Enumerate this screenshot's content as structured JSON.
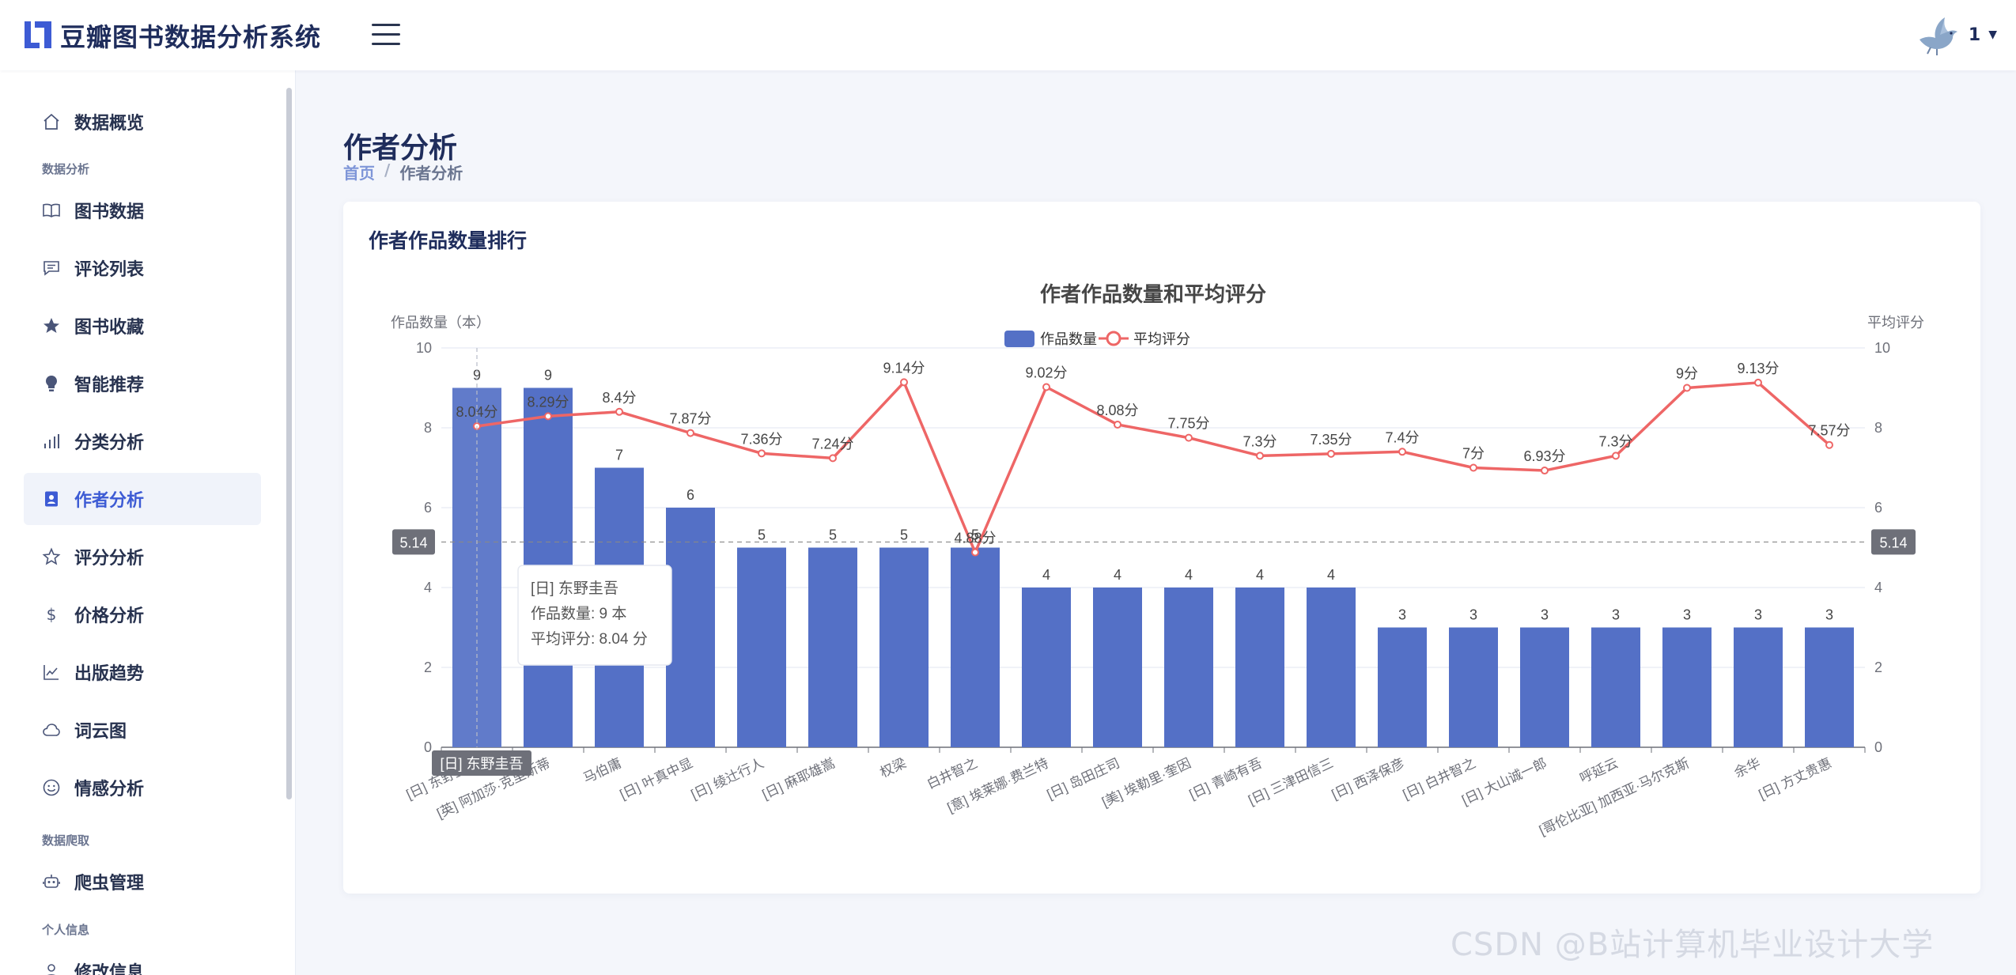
{
  "app": {
    "title": "豆瓣图书数据分析系统"
  },
  "user": {
    "name": "1",
    "avatar_icon": "bird-avatar-icon"
  },
  "sidebar": {
    "items": [
      {
        "key": "overview",
        "label": "数据概览",
        "icon": "home-icon"
      },
      {
        "key": "books",
        "label": "图书数据",
        "icon": "book-icon"
      },
      {
        "key": "comments",
        "label": "评论列表",
        "icon": "message-icon"
      },
      {
        "key": "favorites",
        "label": "图书收藏",
        "icon": "star-filled-icon"
      },
      {
        "key": "recommend",
        "label": "智能推荐",
        "icon": "bulb-icon"
      },
      {
        "key": "category",
        "label": "分类分析",
        "icon": "bar-chart-icon"
      },
      {
        "key": "author",
        "label": "作者分析",
        "icon": "contact-icon"
      },
      {
        "key": "rating",
        "label": "评分分析",
        "icon": "star-outline-icon"
      },
      {
        "key": "price",
        "label": "价格分析",
        "icon": "dollar-icon"
      },
      {
        "key": "trend",
        "label": "出版趋势",
        "icon": "line-chart-icon"
      },
      {
        "key": "wordcloud",
        "label": "词云图",
        "icon": "cloud-icon"
      },
      {
        "key": "sentiment",
        "label": "情感分析",
        "icon": "smile-icon"
      },
      {
        "key": "crawler",
        "label": "爬虫管理",
        "icon": "robot-icon"
      },
      {
        "key": "profile",
        "label": "修改信息",
        "icon": "user-icon"
      }
    ],
    "sections": [
      "数据分析",
      "数据爬取",
      "个人信息"
    ],
    "active": "author"
  },
  "page": {
    "title": "作者分析",
    "breadcrumb": {
      "home": "首页",
      "separator": "/",
      "current": "作者分析"
    }
  },
  "card": {
    "title": "作者作品数量排行"
  },
  "tooltip": {
    "title": "[日] 东野圭吾",
    "line1": "作品数量: 9 本",
    "line2": "平均评分: 8.04 分"
  },
  "axis_pointer_label": "[日] 东野圭吾",
  "average_marker": "5.14",
  "watermark": "CSDN @B站计算机毕业设计大学",
  "colors": {
    "bar": "#5470c6",
    "line": "#ee6666",
    "accent": "#3d5bd4"
  },
  "chart_data": {
    "type": "bar",
    "title": "作者作品数量和平均评分",
    "ylabel": "作品数量（本）",
    "y2label": "平均评分",
    "ylim": [
      0,
      10
    ],
    "y2lim": [
      0,
      10
    ],
    "yticks": [
      0,
      2,
      4,
      6,
      8,
      10
    ],
    "legend_position": "top-center",
    "grid": true,
    "average_line": 5.14,
    "categories": [
      "[日] 东野圭吾",
      "[英] 阿加莎·克里斯蒂",
      "马伯庸",
      "[日] 叶真中显",
      "[日] 绫辻行人",
      "[日] 麻耶雄嵩",
      "权梁",
      "白井智之",
      "[意] 埃莱娜·费兰特",
      "[日] 岛田庄司",
      "[美] 埃勒里·奎因",
      "[日] 青崎有吾",
      "[日] 三津田信三",
      "[日] 西泽保彦",
      "[日] 白井智之",
      "[日] 大山诚一郎",
      "呼延云",
      "[哥伦比亚] 加西亚·马尔克斯",
      "余华",
      "[日] 方丈贵惠"
    ],
    "series": [
      {
        "name": "作品数量",
        "type": "bar",
        "values": [
          9,
          9,
          7,
          6,
          5,
          5,
          5,
          5,
          4,
          4,
          4,
          4,
          4,
          3,
          3,
          3,
          3,
          3,
          3,
          3
        ],
        "labels": [
          "9",
          "9",
          "7",
          "6",
          "5",
          "5",
          "5",
          "5",
          "4",
          "4",
          "4",
          "4",
          "4",
          "3",
          "3",
          "3",
          "3",
          "3",
          "3",
          "3"
        ]
      },
      {
        "name": "平均评分",
        "type": "line",
        "values": [
          8.04,
          8.29,
          8.4,
          7.87,
          7.36,
          7.24,
          9.14,
          4.88,
          9.02,
          8.08,
          7.75,
          7.3,
          7.35,
          7.4,
          7,
          6.93,
          7.3,
          9,
          9.13,
          7.57
        ],
        "labels": [
          "8.04分",
          "8.29分",
          "8.4分",
          "7.87分",
          "7.36分",
          "7.24分",
          "9.14分",
          "4.88分",
          "9.02分",
          "8.08分",
          "7.75分",
          "7.3分",
          "7.35分",
          "7.4分",
          "7分",
          "6.93分",
          "7.3分",
          "9分",
          "9.13分",
          "7.57分"
        ]
      }
    ]
  }
}
